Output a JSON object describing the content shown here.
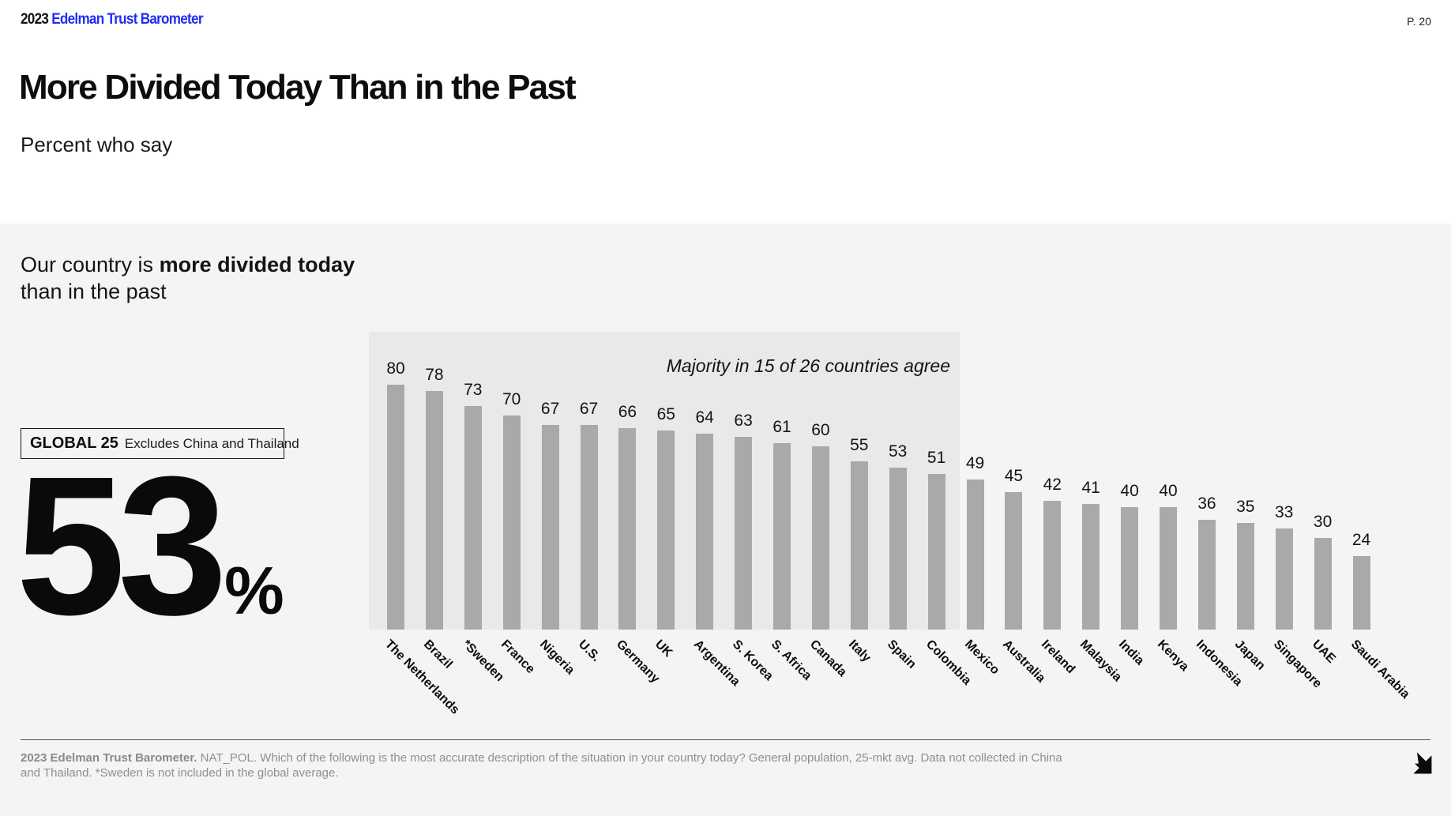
{
  "header": {
    "year": "2023",
    "brand": "Edelman Trust Barometer",
    "page": "P. 20"
  },
  "title": "More Divided Today Than in the Past",
  "subtitle": "Percent who say",
  "statement": {
    "line1_regular": "Our country is ",
    "line1_bold": "more divided today",
    "line2": "than in the past"
  },
  "global_label": {
    "title": "GLOBAL 25",
    "note": "Excludes China and Thailand"
  },
  "global_value": {
    "number": "53",
    "unit": "%"
  },
  "chart_data": {
    "type": "bar",
    "annotation": "Majority in 15 of 26 countries agree",
    "categories": [
      "The Netherlands",
      "Brazil",
      "*Sweden",
      "France",
      "Nigeria",
      "U.S.",
      "Germany",
      "UK",
      "Argentina",
      "S. Korea",
      "S. Africa",
      "Canada",
      "Italy",
      "Spain",
      "Colombia",
      "Mexico",
      "Australia",
      "Ireland",
      "Malaysia",
      "India",
      "Kenya",
      "Indonesia",
      "Japan",
      "Singapore",
      "UAE",
      "Saudi Arabia"
    ],
    "values": [
      80,
      78,
      73,
      70,
      67,
      67,
      66,
      65,
      64,
      63,
      61,
      60,
      55,
      53,
      51,
      49,
      45,
      42,
      41,
      40,
      40,
      36,
      35,
      33,
      30,
      24
    ],
    "highlighted_count": 15,
    "ylim": [
      0,
      100
    ],
    "grid": false,
    "bar_color": "#a9a9a9",
    "highlight_bg": "#e9e9e9"
  },
  "footer": {
    "source_bold": "2023 Edelman Trust Barometer.",
    "source_text": " NAT_POL. Which of the following is the most accurate description of the situation in your country today? General population, 25-mkt avg. Data not collected in China and Thailand. *Sweden is not included in the global average."
  },
  "colors": {
    "brand_blue": "#1f2df2",
    "section_bg": "#f4f4f4",
    "icon_next_arrow": "#0a0a0a"
  }
}
